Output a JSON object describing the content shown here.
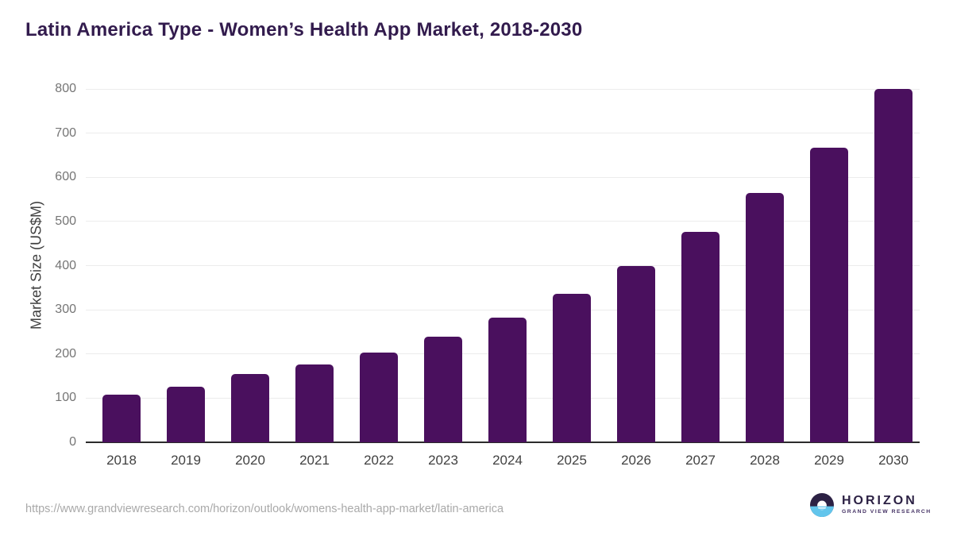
{
  "title": "Latin America Type - Women’s Health App Market, 2018-2030",
  "footer": {
    "source_url": "https://www.grandviewresearch.com/horizon/outlook/womens-health-app-market/latin-america",
    "logo": {
      "name": "HORIZON",
      "tagline": "GRAND VIEW RESEARCH",
      "purple": "#2c2144",
      "blue": "#62c5ec"
    }
  },
  "colors": {
    "bar": "#4a105e",
    "title_text": "#321b4d",
    "axis_line": "#2b2b2b",
    "gridline": "#ececec",
    "y_tick_text": "#757575",
    "x_tick_text": "#414141",
    "url_text": "#a9a9a9"
  },
  "chart_data": {
    "type": "bar",
    "title": "Latin America Type - Women’s Health App Market, 2018-2030",
    "categories": [
      "2018",
      "2019",
      "2020",
      "2021",
      "2022",
      "2023",
      "2024",
      "2025",
      "2026",
      "2027",
      "2028",
      "2029",
      "2030"
    ],
    "values": [
      107,
      125,
      154,
      176,
      203,
      240,
      283,
      336,
      400,
      477,
      564,
      667,
      800
    ],
    "xlabel": "",
    "ylabel": "Market Size (US$M)",
    "ylim": [
      0,
      800
    ],
    "ytick_interval": 100,
    "grid": "horizontal",
    "legend": "none",
    "bar_color": "#4a105e"
  }
}
